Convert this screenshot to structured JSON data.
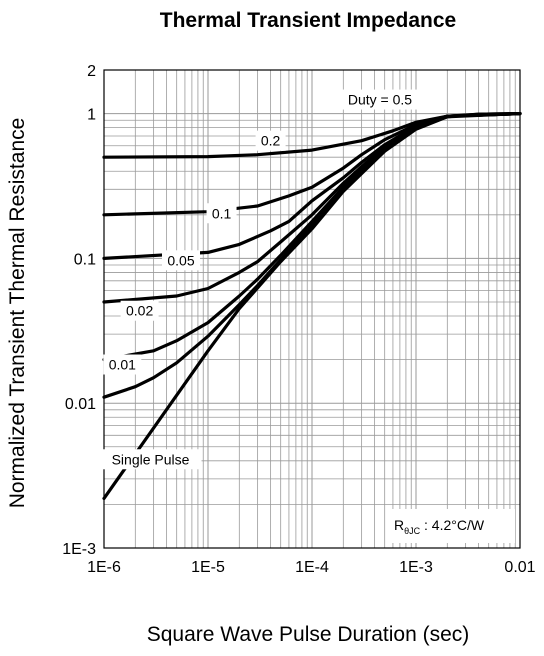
{
  "chart_data": {
    "type": "line",
    "title": "Thermal Transient Impedance",
    "xlabel": "Square Wave Pulse Duration (sec)",
    "ylabel": "Normalized Transient Thermal Resistance",
    "x_scale": "log",
    "y_scale": "log",
    "xlim": [
      1e-06,
      0.01
    ],
    "ylim": [
      0.001,
      2
    ],
    "grid": true,
    "x_ticks": [
      {
        "value": 1e-06,
        "label": "1E-6"
      },
      {
        "value": 1e-05,
        "label": "1E-5"
      },
      {
        "value": 0.0001,
        "label": "1E-4"
      },
      {
        "value": 0.001,
        "label": "1E-3"
      },
      {
        "value": 0.01,
        "label": "0.01"
      }
    ],
    "y_ticks": [
      {
        "value": 0.001,
        "label": "1E-3"
      },
      {
        "value": 0.01,
        "label": "0.01"
      },
      {
        "value": 0.1,
        "label": "0.1"
      },
      {
        "value": 1,
        "label": "1"
      },
      {
        "value": 2,
        "label": "2"
      }
    ],
    "annotation": {
      "symbol": "R",
      "subscript": "θJC",
      "value_text": " : 4.2°C/W"
    },
    "series": [
      {
        "name": "Duty = 0.5",
        "label_at": [
          0.00045,
          1.25
        ],
        "x": [
          1e-06,
          1e-05,
          3e-05,
          0.0001,
          0.0003,
          0.0006,
          0.001,
          0.002,
          0.004,
          0.01
        ],
        "y": [
          0.5,
          0.505,
          0.52,
          0.56,
          0.65,
          0.76,
          0.87,
          0.96,
          0.99,
          1.0
        ]
      },
      {
        "name": "0.2",
        "label_at": [
          4e-05,
          0.65
        ],
        "x": [
          1e-06,
          1e-05,
          3e-05,
          6e-05,
          0.0001,
          0.0002,
          0.0003,
          0.0005,
          0.001,
          0.002,
          0.01
        ],
        "y": [
          0.2,
          0.21,
          0.23,
          0.27,
          0.31,
          0.42,
          0.52,
          0.66,
          0.84,
          0.96,
          1.0
        ]
      },
      {
        "name": "0.1",
        "label_at": [
          1.35e-05,
          0.205
        ],
        "x": [
          1e-06,
          1e-05,
          2e-05,
          4e-05,
          6e-05,
          0.0001,
          0.0002,
          0.0003,
          0.0005,
          0.001,
          0.002,
          0.01
        ],
        "y": [
          0.1,
          0.11,
          0.125,
          0.155,
          0.18,
          0.25,
          0.36,
          0.46,
          0.61,
          0.82,
          0.96,
          1.0
        ]
      },
      {
        "name": "0.05",
        "label_at": [
          5.5e-06,
          0.097
        ],
        "x": [
          1e-06,
          5e-06,
          1e-05,
          2e-05,
          3e-05,
          5e-05,
          0.0001,
          0.0002,
          0.0003,
          0.0005,
          0.001,
          0.002,
          0.01
        ],
        "y": [
          0.05,
          0.055,
          0.062,
          0.08,
          0.095,
          0.13,
          0.2,
          0.33,
          0.43,
          0.59,
          0.81,
          0.96,
          1.0
        ]
      },
      {
        "name": "0.02",
        "label_at": [
          2.2e-06,
          0.0435
        ],
        "x": [
          1e-06,
          3e-06,
          5e-06,
          1e-05,
          2e-05,
          3e-05,
          5e-05,
          0.0001,
          0.0002,
          0.0003,
          0.0005,
          0.001,
          0.002,
          0.01
        ],
        "y": [
          0.02,
          0.023,
          0.027,
          0.036,
          0.055,
          0.072,
          0.105,
          0.18,
          0.31,
          0.41,
          0.57,
          0.8,
          0.96,
          1.0
        ]
      },
      {
        "name": "0.01",
        "label_at": [
          1.5e-06,
          0.0185
        ],
        "x": [
          1e-06,
          2e-06,
          3e-06,
          5e-06,
          1e-05,
          2e-05,
          3e-05,
          5e-05,
          0.0001,
          0.0002,
          0.0003,
          0.0005,
          0.001,
          0.002,
          0.01
        ],
        "y": [
          0.011,
          0.013,
          0.015,
          0.019,
          0.029,
          0.048,
          0.065,
          0.098,
          0.17,
          0.3,
          0.4,
          0.56,
          0.79,
          0.95,
          1.0
        ]
      },
      {
        "name": "Single Pulse",
        "label_at": [
          2.8e-06,
          0.0041
        ],
        "x": [
          1e-06,
          1e-05,
          2e-05,
          5e-05,
          0.0001,
          0.0002,
          0.0005,
          0.001,
          0.002,
          0.004,
          0.01
        ],
        "y": [
          0.0022,
          0.023,
          0.045,
          0.095,
          0.16,
          0.29,
          0.55,
          0.78,
          0.95,
          0.99,
          1.0
        ]
      }
    ]
  }
}
